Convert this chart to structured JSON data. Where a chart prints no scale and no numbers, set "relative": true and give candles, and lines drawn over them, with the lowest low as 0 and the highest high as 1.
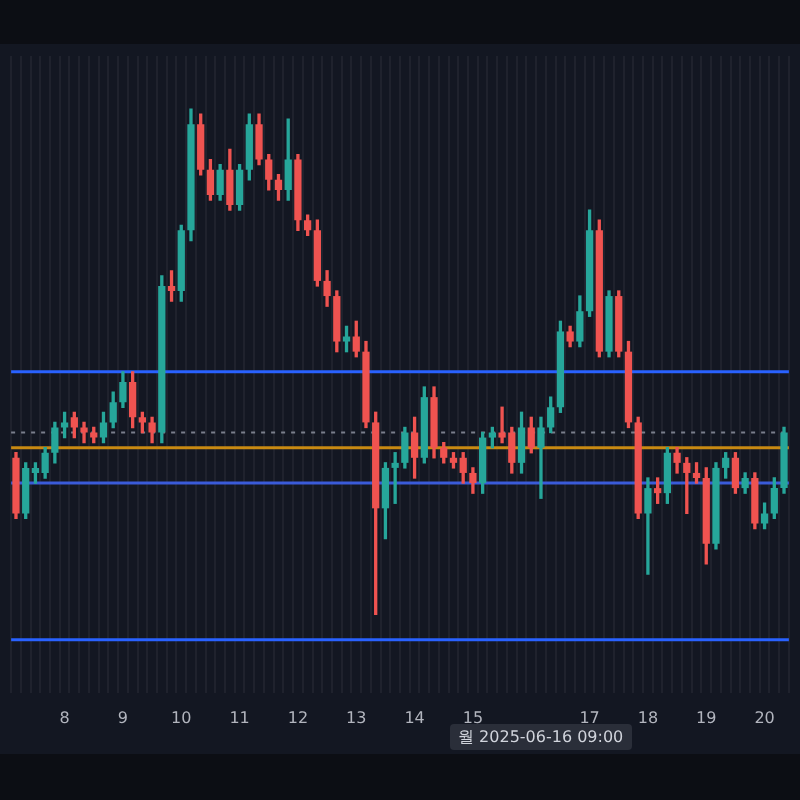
{
  "chart_data": {
    "type": "candlestick",
    "relative": true,
    "grid": true,
    "tick_labels": "x",
    "categories": [
      null,
      null,
      null,
      null,
      null,
      "8",
      null,
      null,
      null,
      null,
      null,
      "9",
      null,
      null,
      null,
      null,
      null,
      "10",
      null,
      null,
      null,
      null,
      null,
      "11",
      null,
      null,
      null,
      null,
      null,
      "12",
      null,
      null,
      null,
      null,
      null,
      "13",
      null,
      null,
      null,
      null,
      null,
      "14",
      null,
      null,
      null,
      null,
      null,
      "15",
      null,
      null,
      null,
      null,
      null,
      null,
      null,
      null,
      null,
      null,
      null,
      "17",
      null,
      null,
      null,
      null,
      null,
      "18",
      null,
      null,
      null,
      null,
      null,
      "19",
      null,
      null,
      null,
      null,
      null,
      "20",
      null,
      null
    ],
    "ohlc": [
      [
        0.31,
        0.32,
        0.19,
        0.2
      ],
      [
        0.2,
        0.3,
        0.19,
        0.29
      ],
      [
        0.28,
        0.3,
        0.26,
        0.29
      ],
      [
        0.28,
        0.33,
        0.27,
        0.32
      ],
      [
        0.32,
        0.38,
        0.3,
        0.37
      ],
      [
        0.37,
        0.4,
        0.35,
        0.38
      ],
      [
        0.39,
        0.4,
        0.35,
        0.37
      ],
      [
        0.37,
        0.38,
        0.34,
        0.36
      ],
      [
        0.36,
        0.37,
        0.34,
        0.35
      ],
      [
        0.35,
        0.4,
        0.34,
        0.38
      ],
      [
        0.38,
        0.44,
        0.37,
        0.42
      ],
      [
        0.42,
        0.48,
        0.41,
        0.46
      ],
      [
        0.46,
        0.48,
        0.37,
        0.39
      ],
      [
        0.39,
        0.4,
        0.36,
        0.38
      ],
      [
        0.38,
        0.39,
        0.34,
        0.36
      ],
      [
        0.36,
        0.67,
        0.34,
        0.65
      ],
      [
        0.65,
        0.68,
        0.62,
        0.64
      ],
      [
        0.64,
        0.77,
        0.62,
        0.76
      ],
      [
        0.76,
        1,
        0.74,
        0.97
      ],
      [
        0.97,
        0.99,
        0.87,
        0.88
      ],
      [
        0.88,
        0.9,
        0.82,
        0.83
      ],
      [
        0.83,
        0.89,
        0.82,
        0.88
      ],
      [
        0.88,
        0.92,
        0.8,
        0.81
      ],
      [
        0.81,
        0.89,
        0.8,
        0.88
      ],
      [
        0.88,
        0.99,
        0.86,
        0.97
      ],
      [
        0.97,
        0.99,
        0.89,
        0.9
      ],
      [
        0.9,
        0.91,
        0.84,
        0.86
      ],
      [
        0.86,
        0.87,
        0.82,
        0.84
      ],
      [
        0.84,
        0.98,
        0.82,
        0.9
      ],
      [
        0.9,
        0.91,
        0.76,
        0.78
      ],
      [
        0.78,
        0.79,
        0.75,
        0.76
      ],
      [
        0.76,
        0.78,
        0.65,
        0.66
      ],
      [
        0.66,
        0.68,
        0.61,
        0.63
      ],
      [
        0.63,
        0.64,
        0.52,
        0.54
      ],
      [
        0.54,
        0.57,
        0.52,
        0.55
      ],
      [
        0.55,
        0.58,
        0.51,
        0.52
      ],
      [
        0.52,
        0.54,
        0.37,
        0.38
      ],
      [
        0.38,
        0.4,
        0,
        0.21
      ],
      [
        0.21,
        0.3,
        0.15,
        0.29
      ],
      [
        0.29,
        0.32,
        0.22,
        0.3
      ],
      [
        0.3,
        0.37,
        0.29,
        0.36
      ],
      [
        0.36,
        0.39,
        0.27,
        0.31
      ],
      [
        0.31,
        0.45,
        0.3,
        0.43
      ],
      [
        0.43,
        0.45,
        0.31,
        0.33
      ],
      [
        0.33,
        0.34,
        0.3,
        0.31
      ],
      [
        0.31,
        0.32,
        0.29,
        0.3
      ],
      [
        0.31,
        0.32,
        0.26,
        0.28
      ],
      [
        0.28,
        0.29,
        0.24,
        0.26
      ],
      [
        0.26,
        0.36,
        0.24,
        0.35
      ],
      [
        0.35,
        0.37,
        0.33,
        0.36
      ],
      [
        0.36,
        0.41,
        0.34,
        0.35
      ],
      [
        0.36,
        0.37,
        0.28,
        0.3
      ],
      [
        0.3,
        0.4,
        0.28,
        0.37
      ],
      [
        0.37,
        0.39,
        0.32,
        0.33
      ],
      [
        0.33,
        0.39,
        0.23,
        0.37
      ],
      [
        0.37,
        0.43,
        0.36,
        0.41
      ],
      [
        0.41,
        0.58,
        0.4,
        0.56
      ],
      [
        0.56,
        0.57,
        0.53,
        0.54
      ],
      [
        0.54,
        0.63,
        0.53,
        0.6
      ],
      [
        0.6,
        0.8,
        0.59,
        0.76
      ],
      [
        0.76,
        0.78,
        0.51,
        0.52
      ],
      [
        0.52,
        0.64,
        0.51,
        0.63
      ],
      [
        0.63,
        0.64,
        0.51,
        0.52
      ],
      [
        0.52,
        0.54,
        0.37,
        0.38
      ],
      [
        0.38,
        0.39,
        0.19,
        0.2
      ],
      [
        0.2,
        0.27,
        0.08,
        0.25
      ],
      [
        0.25,
        0.27,
        0.22,
        0.24
      ],
      [
        0.24,
        0.33,
        0.22,
        0.32
      ],
      [
        0.32,
        0.33,
        0.28,
        0.3
      ],
      [
        0.3,
        0.31,
        0.2,
        0.28
      ],
      [
        0.28,
        0.3,
        0.26,
        0.27
      ],
      [
        0.27,
        0.29,
        0.1,
        0.14
      ],
      [
        0.14,
        0.3,
        0.13,
        0.29
      ],
      [
        0.29,
        0.32,
        0.27,
        0.31
      ],
      [
        0.31,
        0.32,
        0.24,
        0.25
      ],
      [
        0.25,
        0.28,
        0.24,
        0.27
      ],
      [
        0.27,
        0.28,
        0.17,
        0.18
      ],
      [
        0.18,
        0.22,
        0.17,
        0.2
      ],
      [
        0.2,
        0.27,
        0.19,
        0.25
      ],
      [
        0.25,
        0.37,
        0.24,
        0.36
      ]
    ],
    "ref_lines": [
      {
        "axis": "y",
        "value": 0.48,
        "color": "#2962ff",
        "line_style": "solid"
      },
      {
        "axis": "y",
        "value": -0.05,
        "color": "#2962ff",
        "line_style": "solid"
      },
      {
        "axis": "y",
        "value": 0.33,
        "color": "#c98a12",
        "line_style": "solid"
      },
      {
        "axis": "y",
        "value": 0.26,
        "color": "#3a5bd9",
        "line_style": "solid"
      },
      {
        "axis": "y",
        "value": 0.36,
        "color": "#7a7f8c",
        "line_style": "dotted"
      }
    ],
    "annotations": [
      "월 2025-06-16  09:00"
    ]
  }
}
